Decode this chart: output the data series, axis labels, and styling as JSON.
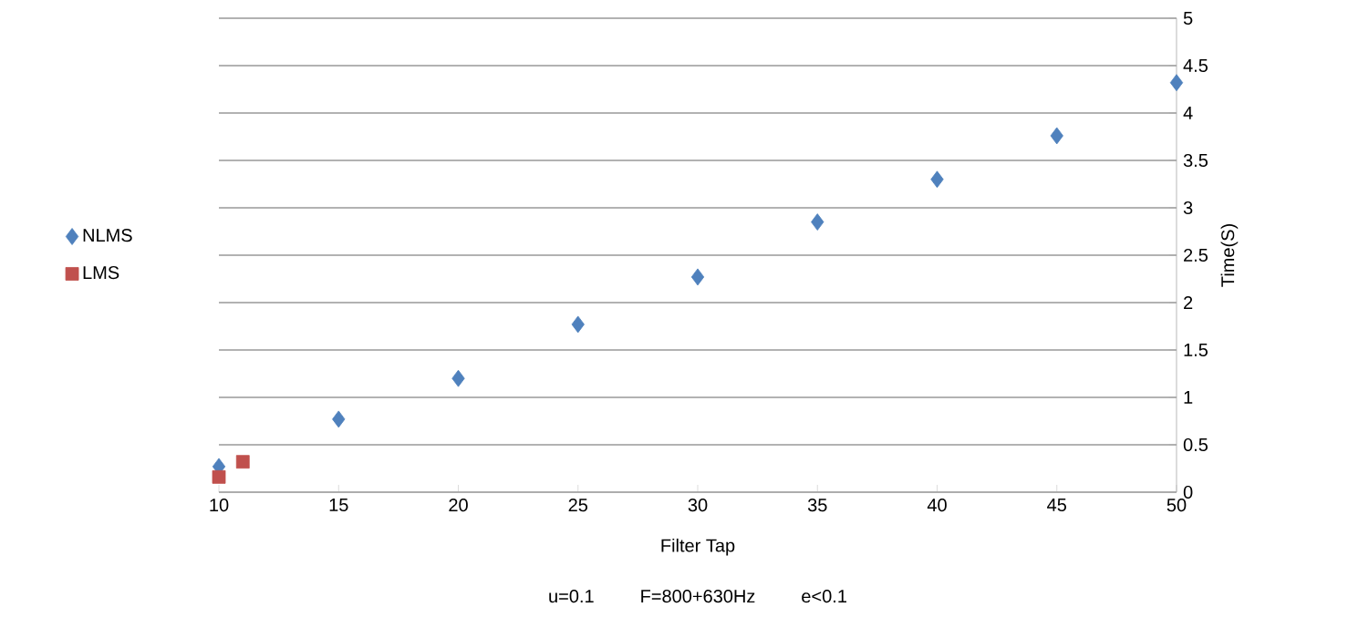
{
  "chart_data": {
    "type": "scatter",
    "xlabel": "Filter Tap",
    "ylabel": "Time(S)",
    "annotations": [
      "u=0.1    F=800+630Hz    e<0.1"
    ],
    "xlim": [
      10,
      50
    ],
    "xticks": [
      10,
      15,
      20,
      25,
      30,
      35,
      40,
      45,
      50
    ],
    "ylim": [
      0,
      5
    ],
    "yticks": [
      0,
      0.5,
      1,
      1.5,
      2,
      2.5,
      3,
      3.5,
      4,
      4.5,
      5
    ],
    "grid": "y",
    "legend": "left",
    "series": [
      {
        "name": "NLMS",
        "color": "#4f81bd",
        "marker": "diamond",
        "x": [
          10,
          15,
          20,
          25,
          30,
          35,
          40,
          45,
          50
        ],
        "values": [
          0.27,
          0.77,
          1.2,
          1.77,
          2.27,
          2.85,
          3.3,
          3.76,
          4.32
        ]
      },
      {
        "name": "LMS",
        "color": "#c0504d",
        "marker": "square",
        "x": [
          10,
          11
        ],
        "values": [
          0.16,
          0.32
        ]
      }
    ]
  }
}
